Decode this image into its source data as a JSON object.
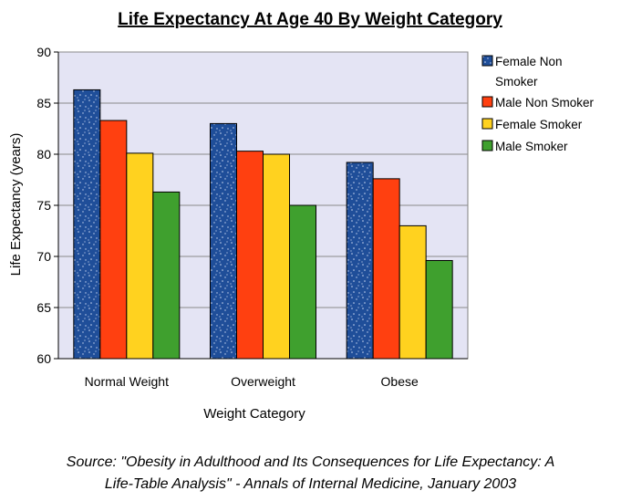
{
  "chart_data": {
    "type": "bar",
    "title": "Life Expectancy At Age 40 By Weight Category",
    "xlabel": "Weight Category",
    "ylabel": "Life Expectancy (years)",
    "ylim": [
      60,
      90
    ],
    "yticks": [
      60,
      65,
      70,
      75,
      80,
      85,
      90
    ],
    "grid": true,
    "legend_position": "right",
    "categories": [
      "Normal Weight",
      "Overweight",
      "Obese"
    ],
    "series": [
      {
        "name": "Female Non Smoker",
        "legend_lines": [
          "Female Non",
          "Smoker"
        ],
        "color": "#1f4e99",
        "pattern": "speckled",
        "values": [
          86.3,
          83.0,
          79.2
        ]
      },
      {
        "name": "Male Non Smoker",
        "legend_lines": [
          "Male Non Smoker"
        ],
        "color": "#ff4010",
        "values": [
          83.3,
          80.3,
          77.6
        ]
      },
      {
        "name": "Female Smoker",
        "legend_lines": [
          "Female Smoker"
        ],
        "color": "#ffd21f",
        "values": [
          80.1,
          80.0,
          73.0
        ]
      },
      {
        "name": "Male Smoker",
        "legend_lines": [
          "Male Smoker"
        ],
        "color": "#3fa02e",
        "values": [
          76.3,
          75.0,
          69.6
        ]
      }
    ]
  },
  "source": {
    "line1": "Source: \"Obesity in Adulthood and Its Consequences for Life Expectancy: A",
    "line2": "Life-Table Analysis\" - Annals of Internal Medicine, January 2003"
  },
  "colors": {
    "plot_background": "#e4e4f4",
    "gridline": "#8a8a8a"
  }
}
